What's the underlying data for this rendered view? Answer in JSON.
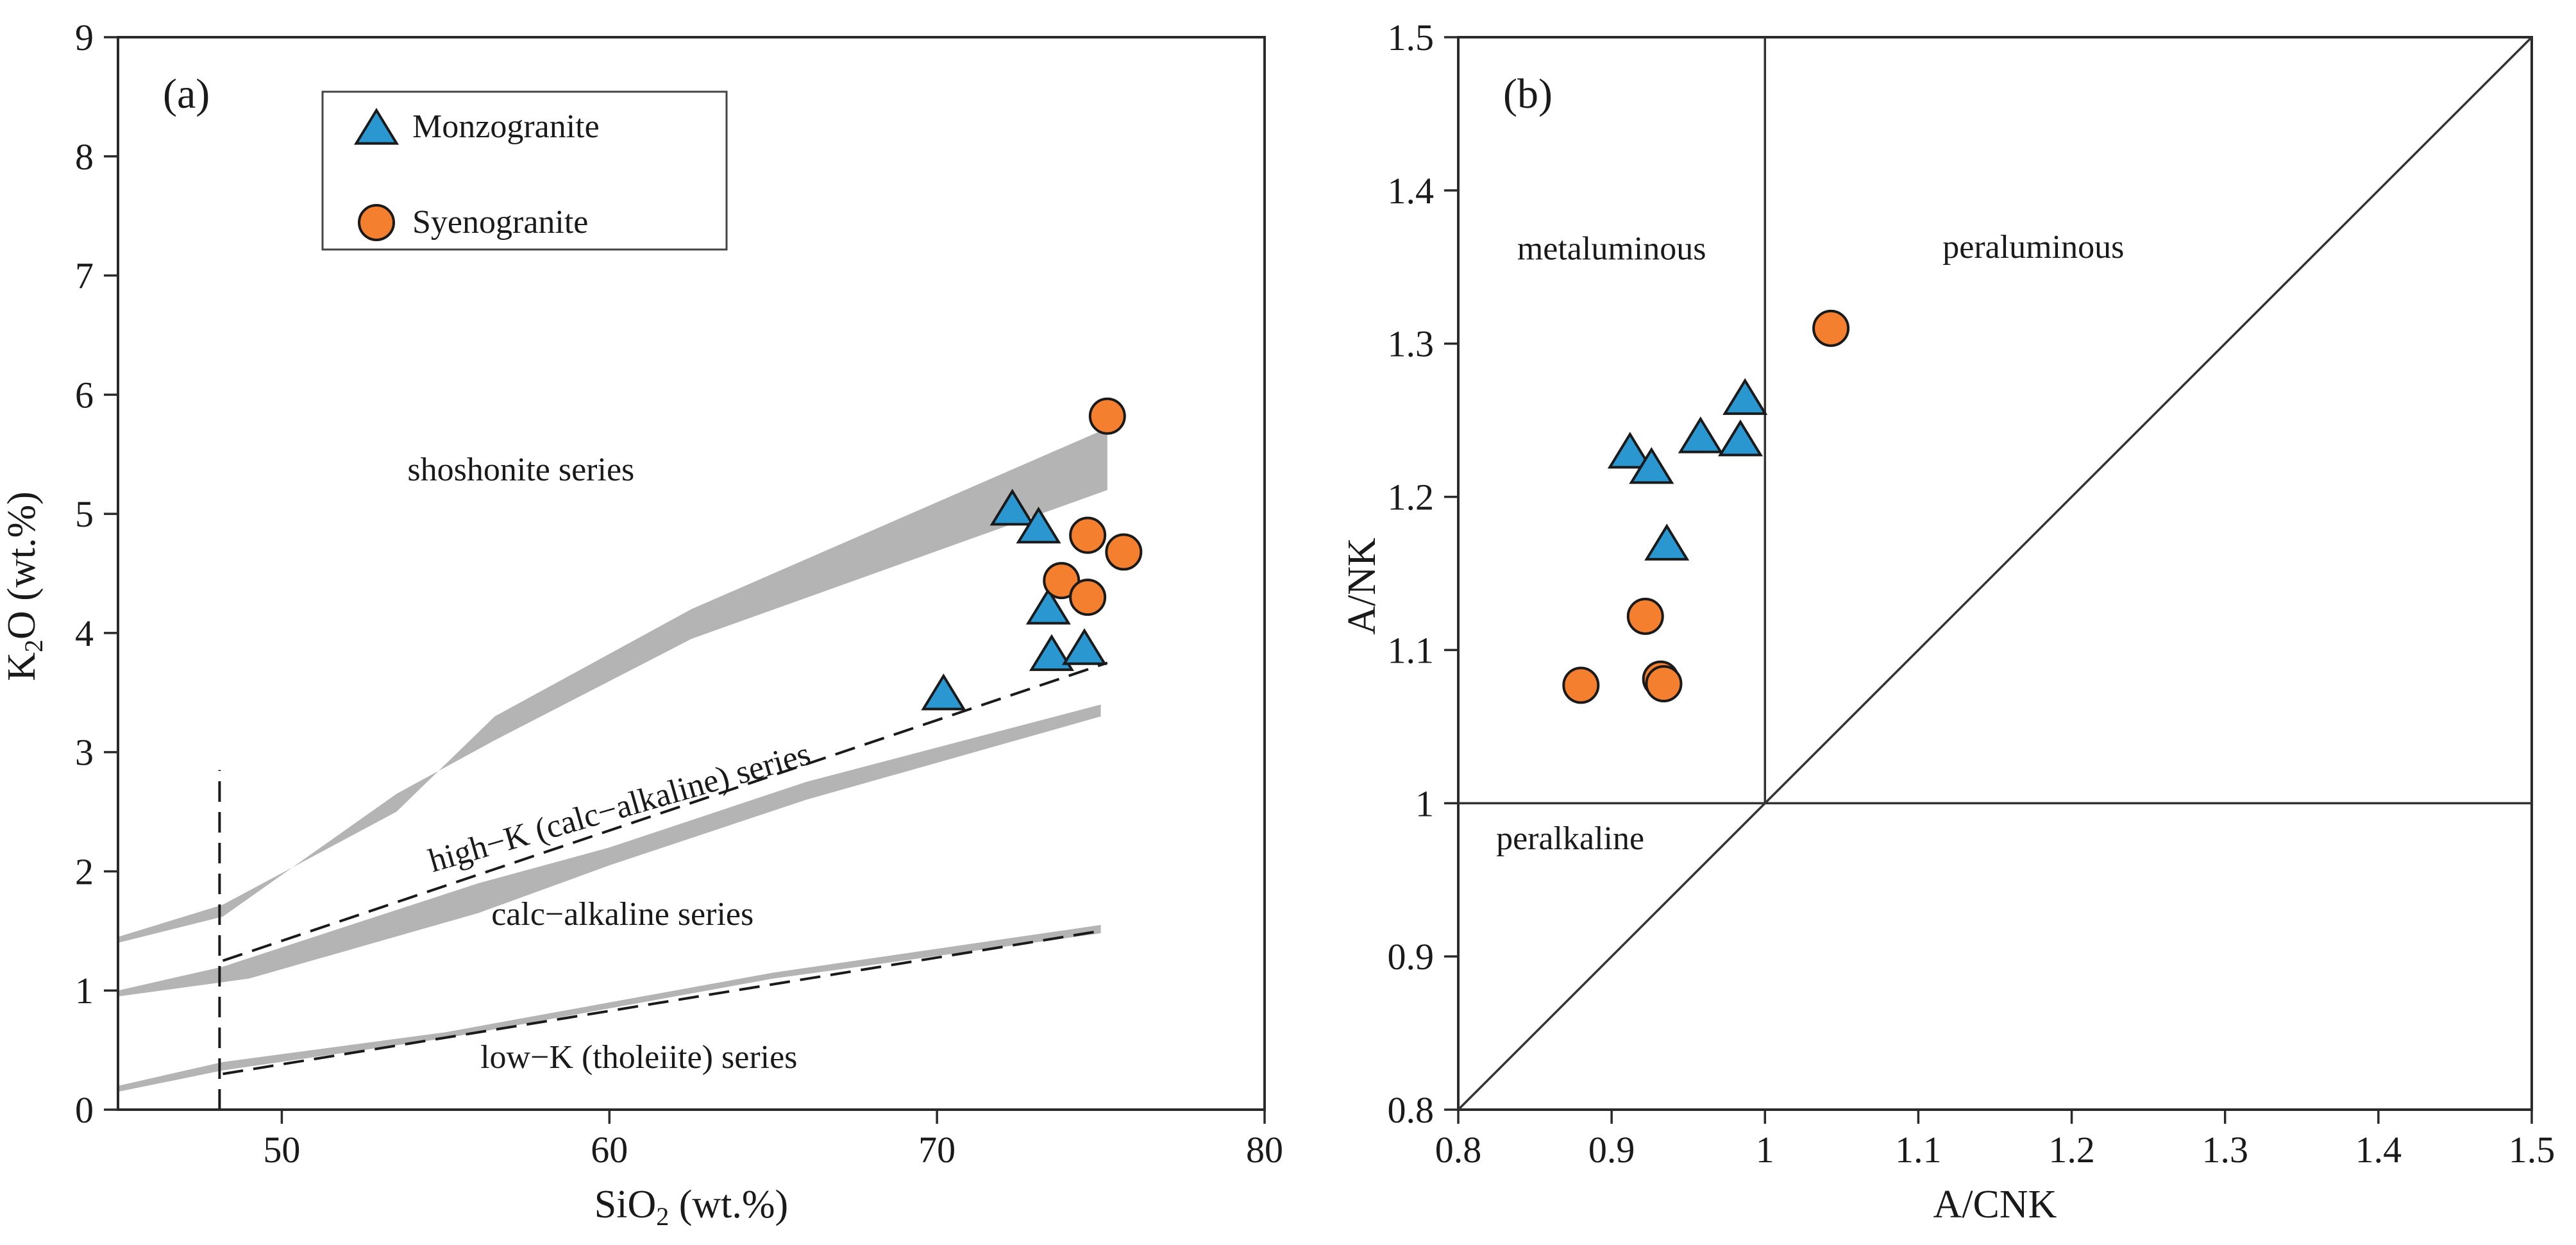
{
  "colors": {
    "monzogranite": "#2b97d0",
    "syenogranite": "#f47f2f",
    "band": "#b4b4b4",
    "axis": "#2a2a2a"
  },
  "chart_data": [
    {
      "id": "a",
      "type": "scatter",
      "panel_label": "(a)",
      "xlabel": {
        "main": "SiO",
        "sub": "2",
        "rest": " (wt.%)"
      },
      "ylabel": {
        "main": "K",
        "sub": "2",
        "rest": "O  (wt.%)"
      },
      "xlim": [
        45,
        80
      ],
      "ylim": [
        0,
        9
      ],
      "xticks": [
        50,
        60,
        70,
        80
      ],
      "yticks": [
        0,
        1,
        2,
        3,
        4,
        5,
        6,
        7,
        8,
        9
      ],
      "legend": {
        "placement": "top-left",
        "items": [
          {
            "name": "Monzogranite",
            "marker": "triangle"
          },
          {
            "name": "Syenogranite",
            "marker": "circle"
          }
        ]
      },
      "bands": [
        {
          "name": "shoshonite / high-K boundary",
          "upper": [
            [
              45,
              1.45
            ],
            [
              48.2,
              1.72
            ],
            [
              53.5,
              2.5
            ],
            [
              56.5,
              3.3
            ],
            [
              62.5,
              4.2
            ],
            [
              75.2,
              5.72
            ]
          ],
          "lower": [
            [
              75.2,
              5.2
            ],
            [
              62.5,
              3.95
            ],
            [
              56.5,
              3.1
            ],
            [
              53.5,
              2.65
            ],
            [
              48.2,
              1.62
            ],
            [
              45,
              1.4
            ]
          ]
        },
        {
          "name": "high-K / calc-alkaline boundary",
          "upper": [
            [
              45,
              1.0
            ],
            [
              48.2,
              1.2
            ],
            [
              56,
              1.9
            ],
            [
              60,
              2.2
            ],
            [
              66,
              2.75
            ],
            [
              75,
              3.4
            ]
          ],
          "lower": [
            [
              75,
              3.3
            ],
            [
              66,
              2.6
            ],
            [
              60,
              2.05
            ],
            [
              56,
              1.65
            ],
            [
              49,
              1.1
            ],
            [
              45,
              0.95
            ]
          ]
        },
        {
          "name": "calc-alkaline / low-K boundary",
          "upper": [
            [
              45,
              0.2
            ],
            [
              48.2,
              0.4
            ],
            [
              55,
              0.65
            ],
            [
              65,
              1.15
            ],
            [
              75,
              1.55
            ]
          ],
          "lower": [
            [
              75,
              1.48
            ],
            [
              65,
              1.1
            ],
            [
              55,
              0.6
            ],
            [
              48.2,
              0.33
            ],
            [
              45,
              0.15
            ]
          ]
        }
      ],
      "dashed_lines": [
        {
          "name": "high-K lower dashed",
          "points": [
            [
              48.2,
              1.25
            ],
            [
              75.2,
              3.75
            ]
          ]
        },
        {
          "name": "low-K dashed",
          "points": [
            [
              48.2,
              0.3
            ],
            [
              75,
              1.5
            ]
          ]
        },
        {
          "name": "SiO2 48 vertical",
          "points": [
            [
              48.1,
              0
            ],
            [
              48.1,
              2.85
            ]
          ]
        }
      ],
      "annotations": [
        {
          "text": "shoshonite series",
          "x": 57.3,
          "y": 5.28,
          "angle": 0
        },
        {
          "text": "high−K (calc−alkaline) series",
          "x": 60.4,
          "y": 2.45,
          "angle": -16
        },
        {
          "text": "calc−alkaline series",
          "x": 60.4,
          "y": 1.55,
          "angle": 0
        },
        {
          "text": "low−K  (tholeiite) series",
          "x": 60.9,
          "y": 0.35,
          "angle": 0
        }
      ],
      "series": [
        {
          "name": "Monzogranite",
          "marker": "triangle",
          "x": [
            70.2,
            72.3,
            73.1,
            73.4,
            73.5,
            74.5
          ],
          "y": [
            3.5,
            5.05,
            4.9,
            4.22,
            3.83,
            3.88
          ]
        },
        {
          "name": "Syenogranite",
          "marker": "circle",
          "x": [
            75.2,
            74.6,
            75.7,
            73.8,
            74.6
          ],
          "y": [
            5.82,
            4.82,
            4.68,
            4.44,
            4.3
          ]
        }
      ]
    },
    {
      "id": "b",
      "type": "scatter",
      "panel_label": "(b)",
      "xlabel": {
        "main": "A/CNK",
        "sub": "",
        "rest": ""
      },
      "ylabel": {
        "main": "A/NK",
        "sub": "",
        "rest": ""
      },
      "xlim": [
        0.8,
        1.5
      ],
      "ylim": [
        0.8,
        1.5
      ],
      "xticks": [
        "0.8",
        "0.9",
        "1",
        "1.1",
        "1.2",
        "1.3",
        "1.4",
        "1.5"
      ],
      "yticks": [
        "0.8",
        "0.9",
        "1",
        "1.1",
        "1.2",
        "1.3",
        "1.4",
        "1.5"
      ],
      "ref_lines": [
        {
          "name": "A/CNK = 1",
          "points": [
            [
              1.0,
              1.0
            ],
            [
              1.0,
              1.5
            ]
          ]
        },
        {
          "name": "A/NK = 1",
          "points": [
            [
              0.8,
              1.0
            ],
            [
              1.5,
              1.0
            ]
          ]
        },
        {
          "name": "A/NK = A/CNK",
          "points": [
            [
              0.8,
              0.8
            ],
            [
              1.5,
              1.5
            ]
          ]
        }
      ],
      "annotations": [
        {
          "text": "metaluminous",
          "x": 0.9,
          "y": 1.355,
          "angle": 0
        },
        {
          "text": "peraluminous",
          "x": 1.175,
          "y": 1.356,
          "angle": 0
        },
        {
          "text": "peralkaline",
          "x": 0.873,
          "y": 0.97,
          "angle": 0
        }
      ],
      "series": [
        {
          "name": "Monzogranite",
          "marker": "triangle",
          "x": [
            0.987,
            0.958,
            0.984,
            0.912,
            0.926,
            0.936
          ],
          "y": [
            1.265,
            1.24,
            1.238,
            1.23,
            1.22,
            1.17
          ]
        },
        {
          "name": "Syenogranite",
          "marker": "circle",
          "x": [
            1.043,
            0.922,
            0.88,
            0.932,
            0.934
          ],
          "y": [
            1.31,
            1.122,
            1.077,
            1.081,
            1.078
          ]
        }
      ]
    }
  ]
}
